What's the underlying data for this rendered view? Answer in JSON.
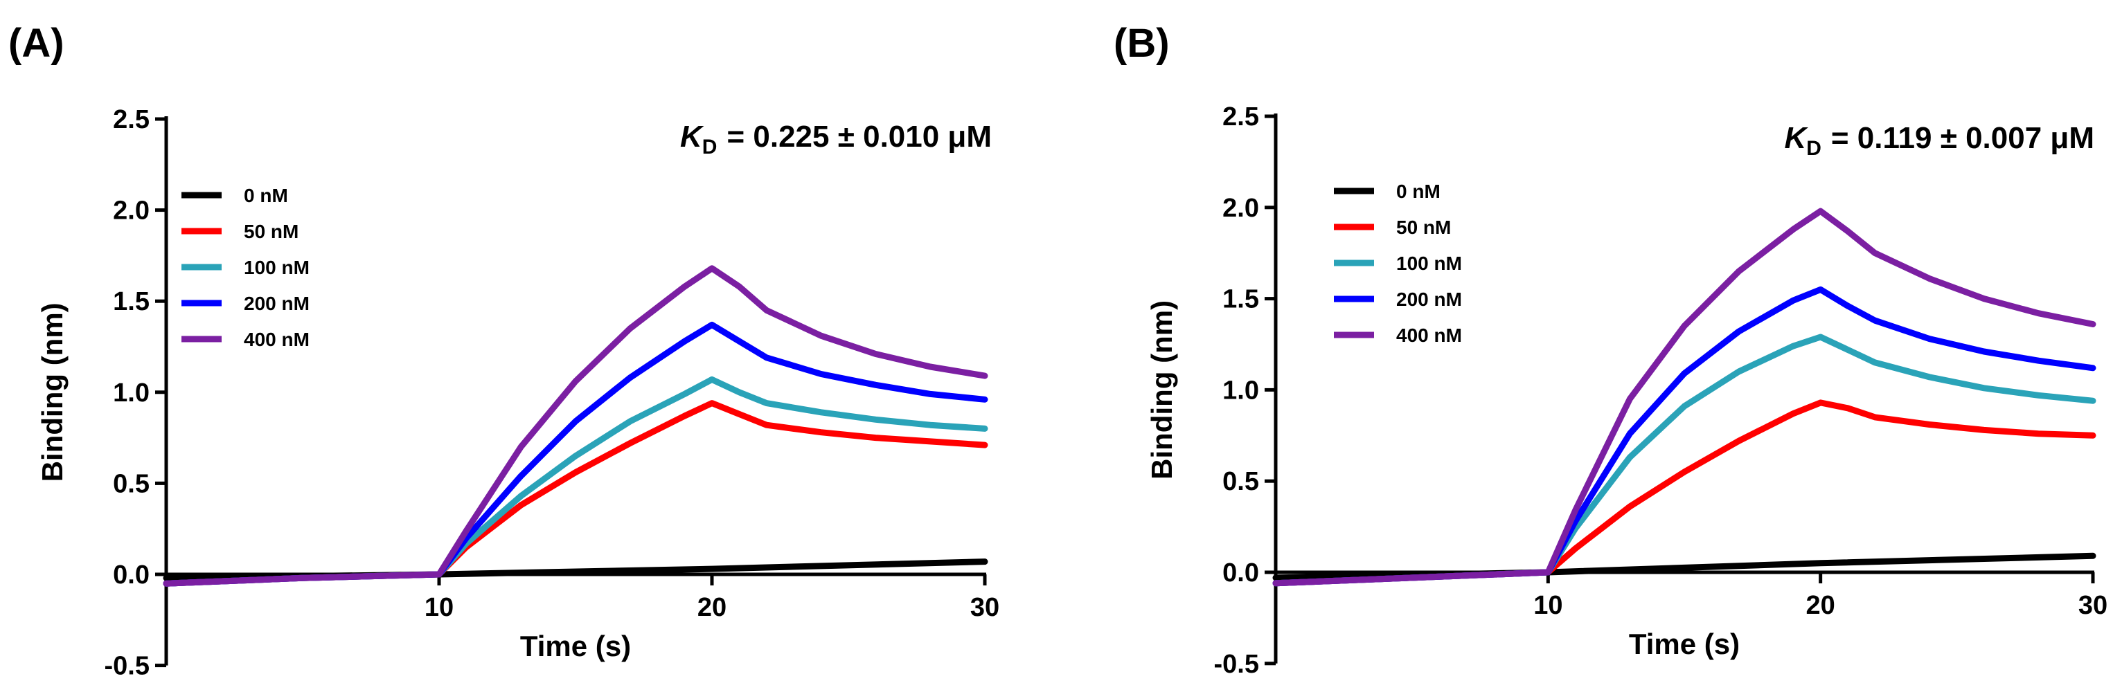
{
  "chart_data": [
    {
      "type": "line",
      "panel_label": "(A)",
      "annotation": {
        "symbol": "K",
        "subscript": "D",
        "text": "= 0.225 ± 0.010 μM"
      },
      "xlabel": "Time (s)",
      "ylabel": "Binding (nm)",
      "xlim": [
        0,
        30
      ],
      "ylim": [
        -0.5,
        2.5
      ],
      "xticks": [
        10,
        20,
        30
      ],
      "xtick_labels": [
        "10",
        "20",
        "30"
      ],
      "yticks": [
        -0.5,
        0.0,
        0.5,
        1.0,
        1.5,
        2.0,
        2.5
      ],
      "ytick_labels": [
        "-0.5",
        "0.0",
        "0.5",
        "1.0",
        "1.5",
        "2.0",
        "2.5"
      ],
      "legend_position": "top-left",
      "series": [
        {
          "name": "0 nM",
          "color": "#000000",
          "x": [
            0,
            10,
            20,
            30
          ],
          "y": [
            -0.02,
            0.0,
            0.03,
            0.07
          ]
        },
        {
          "name": "50 nM",
          "color": "#ff0000",
          "x": [
            0,
            5,
            10,
            11,
            13,
            15,
            17,
            19,
            20,
            21,
            22,
            24,
            26,
            28,
            30
          ],
          "y": [
            -0.05,
            -0.02,
            0.0,
            0.15,
            0.38,
            0.56,
            0.72,
            0.87,
            0.94,
            0.88,
            0.82,
            0.78,
            0.75,
            0.73,
            0.71
          ]
        },
        {
          "name": "100 nM",
          "color": "#2aa3b8",
          "x": [
            0,
            5,
            10,
            11,
            13,
            15,
            17,
            19,
            20,
            21,
            22,
            24,
            26,
            28,
            30
          ],
          "y": [
            -0.05,
            -0.02,
            0.0,
            0.17,
            0.43,
            0.65,
            0.84,
            0.99,
            1.07,
            1.0,
            0.94,
            0.89,
            0.85,
            0.82,
            0.8
          ]
        },
        {
          "name": "200 nM",
          "color": "#0000ff",
          "x": [
            0,
            5,
            10,
            11,
            13,
            15,
            17,
            19,
            20,
            21,
            22,
            24,
            26,
            28,
            30
          ],
          "y": [
            -0.05,
            -0.02,
            0.0,
            0.2,
            0.54,
            0.84,
            1.08,
            1.28,
            1.37,
            1.28,
            1.19,
            1.1,
            1.04,
            0.99,
            0.96
          ]
        },
        {
          "name": "400 nM",
          "color": "#7b1fa2",
          "x": [
            0,
            5,
            10,
            11,
            13,
            15,
            17,
            19,
            20,
            21,
            22,
            24,
            26,
            28,
            30
          ],
          "y": [
            -0.05,
            -0.02,
            0.0,
            0.24,
            0.7,
            1.06,
            1.35,
            1.58,
            1.68,
            1.58,
            1.45,
            1.31,
            1.21,
            1.14,
            1.09
          ]
        }
      ]
    },
    {
      "type": "line",
      "panel_label": "(B)",
      "annotation": {
        "symbol": "K",
        "subscript": "D",
        "text": "= 0.119 ± 0.007 μM"
      },
      "xlabel": "Time (s)",
      "ylabel": "Binding (nm)",
      "xlim": [
        0,
        30
      ],
      "ylim": [
        -0.5,
        2.5
      ],
      "xticks": [
        10,
        20,
        30
      ],
      "xtick_labels": [
        "10",
        "20",
        "30"
      ],
      "yticks": [
        -0.5,
        0.0,
        0.5,
        1.0,
        1.5,
        2.0,
        2.5
      ],
      "ytick_labels": [
        "-0.5",
        "0.0",
        "0.5",
        "1.0",
        "1.5",
        "2.0",
        "2.5"
      ],
      "legend_position": "top-left",
      "series": [
        {
          "name": "0 nM",
          "color": "#000000",
          "x": [
            0,
            10,
            20,
            30
          ],
          "y": [
            -0.03,
            0.0,
            0.05,
            0.09
          ]
        },
        {
          "name": "50 nM",
          "color": "#ff0000",
          "x": [
            0,
            5,
            10,
            11,
            13,
            15,
            17,
            19,
            20,
            21,
            22,
            24,
            26,
            28,
            30
          ],
          "y": [
            -0.06,
            -0.03,
            0.0,
            0.13,
            0.36,
            0.55,
            0.72,
            0.87,
            0.93,
            0.9,
            0.85,
            0.81,
            0.78,
            0.76,
            0.75
          ]
        },
        {
          "name": "100 nM",
          "color": "#2aa3b8",
          "x": [
            0,
            5,
            10,
            11,
            13,
            15,
            17,
            19,
            20,
            21,
            22,
            24,
            26,
            28,
            30
          ],
          "y": [
            -0.06,
            -0.03,
            0.0,
            0.24,
            0.63,
            0.91,
            1.1,
            1.24,
            1.29,
            1.22,
            1.15,
            1.07,
            1.01,
            0.97,
            0.94
          ]
        },
        {
          "name": "200 nM",
          "color": "#0000ff",
          "x": [
            0,
            5,
            10,
            11,
            13,
            15,
            17,
            19,
            20,
            21,
            22,
            24,
            26,
            28,
            30
          ],
          "y": [
            -0.06,
            -0.03,
            0.0,
            0.28,
            0.76,
            1.09,
            1.32,
            1.49,
            1.55,
            1.46,
            1.38,
            1.28,
            1.21,
            1.16,
            1.12
          ]
        },
        {
          "name": "400 nM",
          "color": "#7b1fa2",
          "x": [
            0,
            5,
            10,
            11,
            13,
            15,
            17,
            19,
            20,
            21,
            22,
            24,
            26,
            28,
            30
          ],
          "y": [
            -0.06,
            -0.03,
            0.0,
            0.34,
            0.95,
            1.35,
            1.65,
            1.88,
            1.98,
            1.87,
            1.75,
            1.61,
            1.5,
            1.42,
            1.36
          ]
        }
      ]
    }
  ]
}
